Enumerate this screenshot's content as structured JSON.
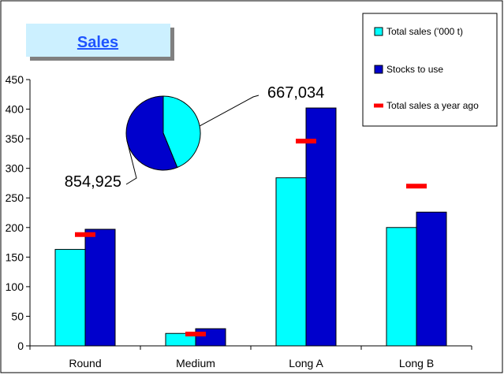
{
  "chart_data": {
    "type": "bar",
    "title": "Sales",
    "categories": [
      "Round",
      "Medium",
      "Long A",
      "Long B"
    ],
    "ylim": [
      0,
      450
    ],
    "yticks": [
      0,
      50,
      100,
      150,
      200,
      250,
      300,
      350,
      400,
      450
    ],
    "grid": false,
    "legend_position": "top-right",
    "series": [
      {
        "name": "Total sales ('000 t)",
        "values": [
          163,
          21,
          284,
          200
        ],
        "color": "#00ffff",
        "mark": "bar"
      },
      {
        "name": "Stocks to use",
        "values": [
          197,
          29,
          402,
          226
        ],
        "color": "#0000cc",
        "mark": "bar"
      },
      {
        "name": "Total sales a year ago",
        "values": [
          188,
          20,
          346,
          270
        ],
        "color": "#ff0000",
        "mark": "dash"
      }
    ],
    "inset_pie": {
      "type": "pie",
      "slices": [
        {
          "label": "667,034",
          "value": 667034,
          "color": "#00ffff"
        },
        {
          "label": "854,925",
          "value": 854925,
          "color": "#0000cc"
        }
      ]
    }
  }
}
